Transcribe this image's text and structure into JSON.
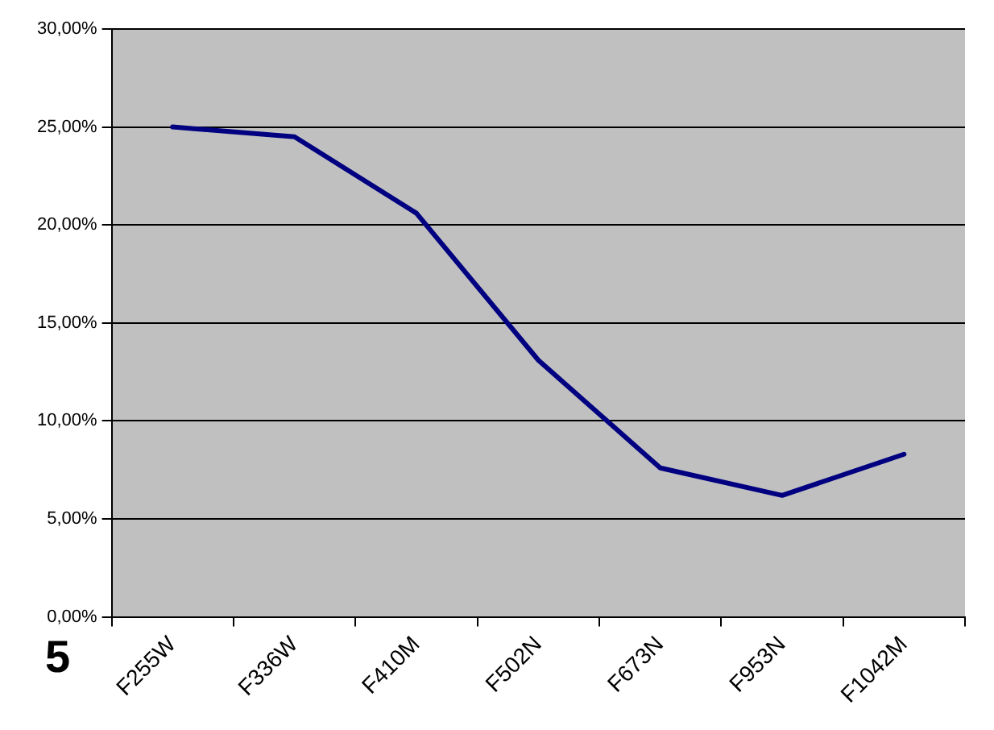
{
  "chart_data": {
    "type": "line",
    "categories": [
      "F255W",
      "F336W",
      "F410M",
      "F502N",
      "F673N",
      "F953N",
      "F1042M"
    ],
    "series": [
      {
        "color": "#000080",
        "values": [
          25.0,
          24.5,
          20.6,
          13.1,
          7.6,
          6.2,
          8.3
        ]
      }
    ],
    "ylim": [
      0,
      30
    ],
    "yticks": [
      {
        "value": 0,
        "label": "0,00%"
      },
      {
        "value": 5,
        "label": "5,00%"
      },
      {
        "value": 10,
        "label": "10,00%"
      },
      {
        "value": 15,
        "label": "15,00%"
      },
      {
        "value": 20,
        "label": "20,00%"
      },
      {
        "value": 25,
        "label": "25,00%"
      },
      {
        "value": 30,
        "label": "30,00%"
      }
    ],
    "grid": "y",
    "legend": false,
    "marker": "none",
    "line_style": "solid",
    "annotations": [
      "5"
    ]
  }
}
